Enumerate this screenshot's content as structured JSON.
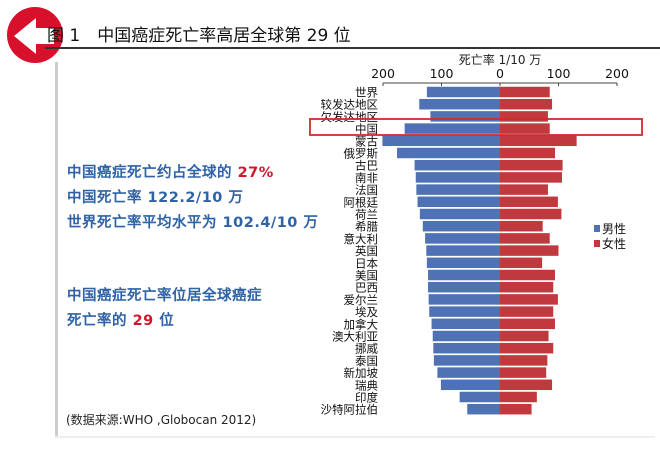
{
  "header": {
    "title": "图 1　中国癌症死亡率高居全球第 29 位",
    "logo_icon": "red-circle-left-arrow-icon"
  },
  "notes": {
    "line1_prefix": "中国癌症死亡约占全球的 ",
    "line1_highlight": "27%",
    "line2": "中国死亡率 122.2/10 万",
    "line3": "世界死亡率平均水平为 102.4/10 万",
    "line4": "中国癌症死亡率位居全球癌症",
    "line5_prefix": "死亡率的 ",
    "line5_highlight": "29",
    "line5_suffix": " 位"
  },
  "source": "(数据来源:WHO ,Globocan  2012)",
  "colors": {
    "male": "#4f72b4",
    "female": "#c0393f",
    "highlight_box": "#d42a2a",
    "note_text": "#2f63a6",
    "note_highlight": "#d3152d"
  },
  "chart_data": {
    "type": "bar",
    "orientation": "horizontal-butterfly",
    "axis_title": "死亡率 1/10 万",
    "xticks": [
      "200",
      "100",
      "0",
      "100",
      "200"
    ],
    "xlim": [
      -200,
      200
    ],
    "highlight_category": "中国",
    "legend_position": "right",
    "categories": [
      "世界",
      "较发达地区",
      "欠发达地区",
      "中国",
      "蒙古",
      "俄罗斯",
      "古巴",
      "南非",
      "法国",
      "阿根廷",
      "荷兰",
      "希腊",
      "意大利",
      "英国",
      "日本",
      "美国",
      "巴西",
      "爱尔兰",
      "埃及",
      "加拿大",
      "澳大利亚",
      "挪威",
      "泰国",
      "新加坡",
      "瑞典",
      "印度",
      "沙特阿拉伯"
    ],
    "series": [
      {
        "name": "男性",
        "values": [
          125,
          138,
          119,
          163,
          201,
          176,
          146,
          144,
          143,
          141,
          137,
          132,
          128,
          126,
          125,
          123,
          123,
          122,
          121,
          117,
          115,
          114,
          113,
          107,
          101,
          69,
          56
        ]
      },
      {
        "name": "女性",
        "values": [
          85,
          89,
          82,
          85,
          131,
          94,
          107,
          106,
          82,
          99,
          105,
          73,
          85,
          100,
          72,
          94,
          91,
          99,
          91,
          94,
          83,
          91,
          81,
          79,
          89,
          63,
          54
        ]
      }
    ]
  }
}
